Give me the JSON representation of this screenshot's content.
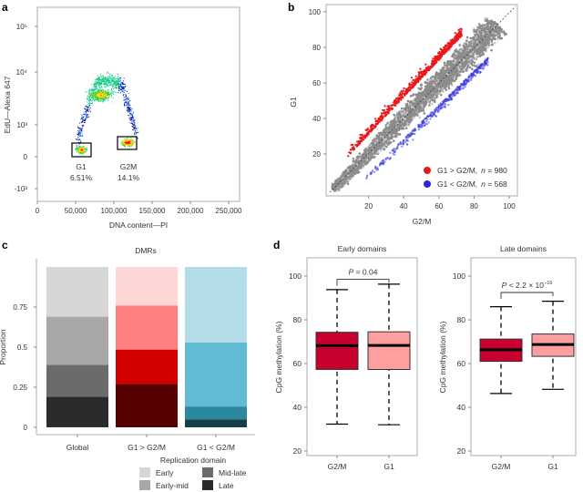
{
  "panel_labels": [
    "a",
    "b",
    "c",
    "d"
  ],
  "chart_data": [
    {
      "panel": "a",
      "type": "scatter",
      "xlabel": "DNA content—PI",
      "ylabel": "EdU—Alexa 647",
      "xticks": [
        "0",
        "50,000",
        "100,000",
        "150,000",
        "200,000",
        "250,000"
      ],
      "yticks": [
        "10⁵",
        "10⁴",
        "10³",
        "0",
        "-10³"
      ],
      "xlim": [
        0,
        260000
      ],
      "yscale": "biexponential",
      "gates": [
        {
          "name": "G1",
          "percent": "6.51%",
          "x_range": [
            45000,
            70000
          ]
        },
        {
          "name": "G2M",
          "percent": "14.1%",
          "x_range": [
            105000,
            130000
          ]
        }
      ],
      "colormap": [
        "#00008b",
        "#1e90ff",
        "#00c8c8",
        "#32cd32",
        "#ffd700",
        "#ff0000"
      ]
    },
    {
      "panel": "b",
      "type": "scatter",
      "xlabel": "G2/M",
      "ylabel": "G1",
      "xticks": [
        "20",
        "40",
        "60",
        "80",
        "100"
      ],
      "yticks": [
        "20",
        "40",
        "60",
        "80",
        "100"
      ],
      "xlim": [
        0,
        105
      ],
      "ylim": [
        0,
        105
      ],
      "diagonal": "dashed y = x",
      "legend_position": "bottom-right",
      "series": [
        {
          "name": "G1 > G2/M,",
          "n_label": "n",
          "n": "980",
          "color": "#e8191c"
        },
        {
          "name": "G1 < G2/M,",
          "n_label": "n",
          "n": "568",
          "color": "#2a2ad6"
        },
        {
          "color": "#8c8c8c"
        }
      ]
    },
    {
      "panel": "c",
      "type": "bar",
      "stacked": true,
      "title": "DMRs",
      "xlabel": "",
      "ylabel": "Proportion",
      "ylim": [
        0,
        1
      ],
      "yticks": [
        "0",
        "0.25",
        "0.5",
        "0.75"
      ],
      "categories": [
        "Global",
        "G1 > G2/M",
        "G1 < G2/M"
      ],
      "legend_title": "Replication domain",
      "legend_position": "bottom-right",
      "series": [
        {
          "name": "Late",
          "values": [
            0.19,
            0.27,
            0.05
          ]
        },
        {
          "name": "Mid-late",
          "values": [
            0.2,
            0.215,
            0.08
          ]
        },
        {
          "name": "Early-mid",
          "values": [
            0.3,
            0.275,
            0.4
          ]
        },
        {
          "name": "Early",
          "values": [
            0.31,
            0.24,
            0.47
          ]
        }
      ],
      "colors": {
        "Global": [
          "#2b2b2b",
          "#6b6b6b",
          "#a8a8a8",
          "#d6d6d6"
        ],
        "G1 > G2/M": [
          "#560000",
          "#d40000",
          "#ff8080",
          "#ffd6d6"
        ],
        "G1 < G2/M": [
          "#143f4a",
          "#2b889f",
          "#61bbd3",
          "#b3dde9"
        ]
      },
      "legend_colors": [
        "#d6d6d6",
        "#a8a8a8",
        "#6b6b6b",
        "#2b2b2b"
      ]
    },
    {
      "panel": "d",
      "type": "box",
      "ylabel": "CpG methylation (%)",
      "ylim": [
        18,
        108
      ],
      "yticks": [
        "20",
        "40",
        "60",
        "80",
        "100"
      ],
      "colors": {
        "G2/M": "#c8002e",
        "G1": "#ff9e9e"
      },
      "facets": [
        {
          "title": "Early domains",
          "p_prefix": "P",
          "p_value": " = 0.04",
          "categories": [
            "G2/M",
            "G1"
          ],
          "boxes": [
            {
              "min": 32.3,
              "q1": 57.3,
              "median": 68.2,
              "q3": 74.3,
              "max": 93.8
            },
            {
              "min": 32.0,
              "q1": 57.3,
              "median": 68.3,
              "q3": 74.5,
              "max": 96.3
            }
          ]
        },
        {
          "title": "Late domains",
          "p_prefix": "P",
          "p_value": " < 2.2 × 10",
          "p_exp": "−16",
          "categories": [
            "G2/M",
            "G1"
          ],
          "boxes": [
            {
              "min": 46.3,
              "q1": 61.0,
              "median": 66.3,
              "q3": 71.2,
              "max": 86.0
            },
            {
              "min": 48.2,
              "q1": 63.3,
              "median": 68.7,
              "q3": 73.5,
              "max": 88.5
            }
          ]
        }
      ]
    }
  ]
}
